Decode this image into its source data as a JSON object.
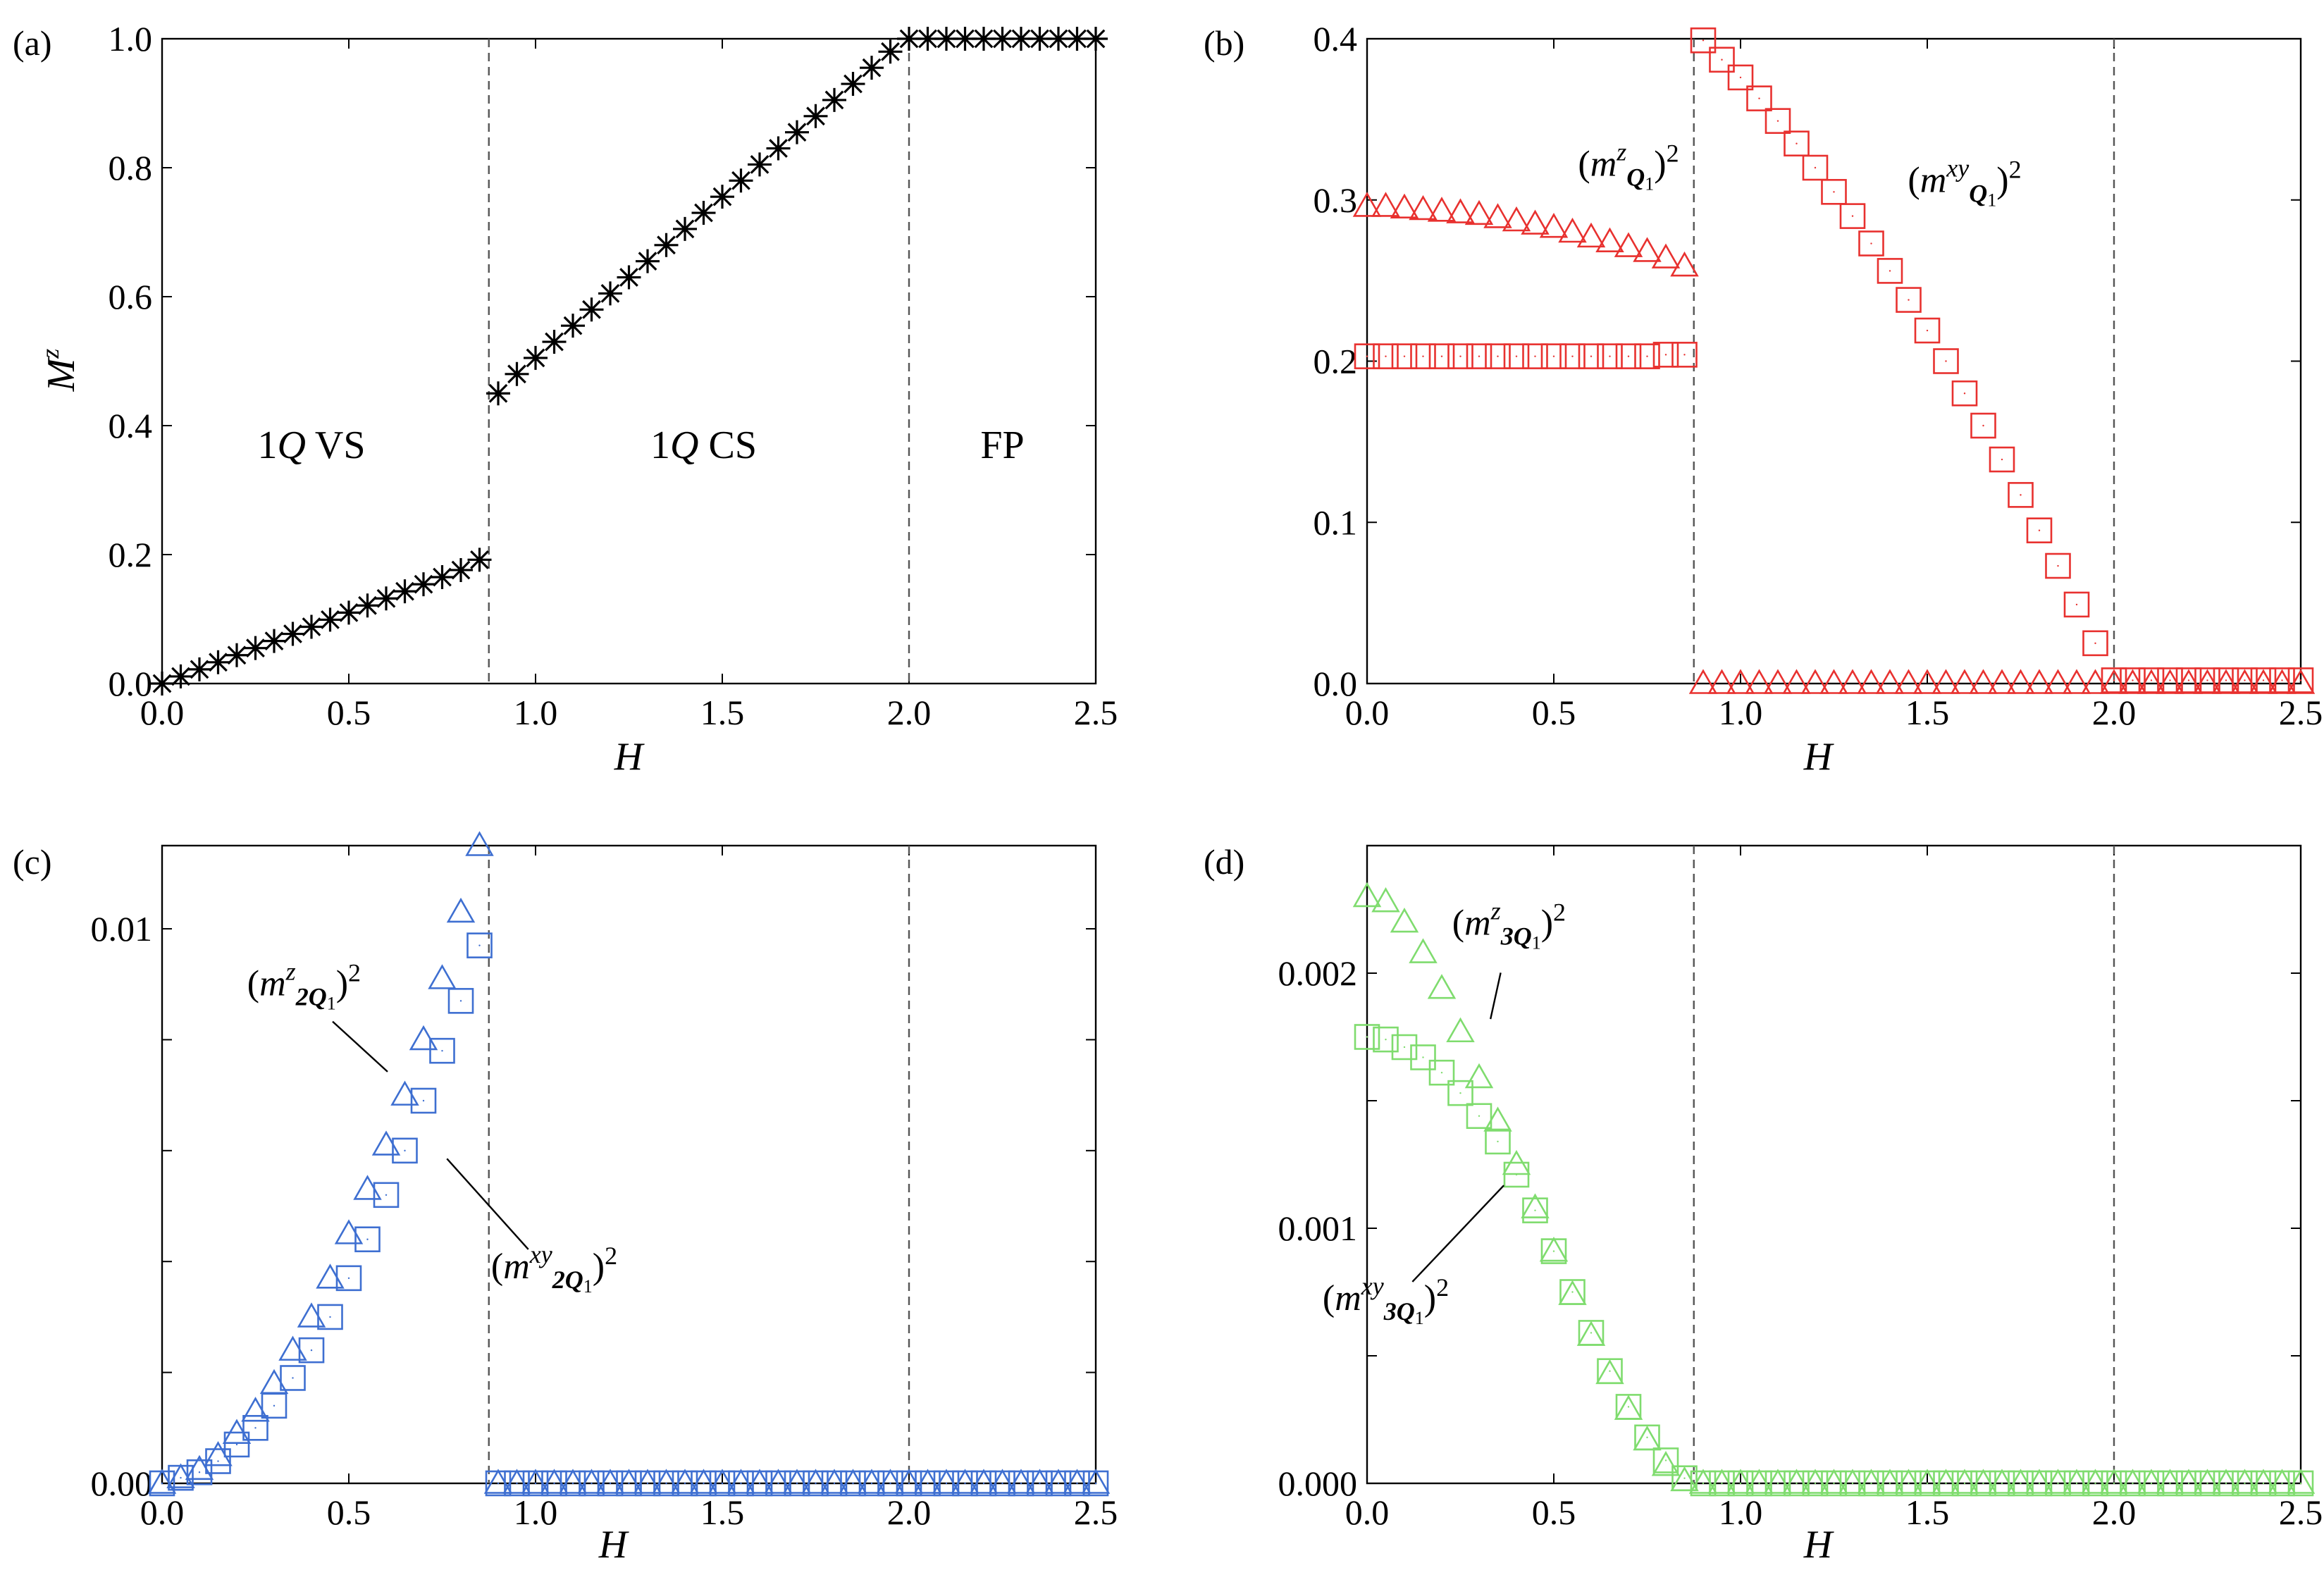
{
  "figure_title": "",
  "chart_data": [
    {
      "id": "a",
      "type": "scatter",
      "panel_label": "(a)",
      "title": "",
      "xlabel": "H",
      "ylabel": "M",
      "ylabel_sup": "z",
      "xlim": [
        0,
        2.5
      ],
      "ylim": [
        0,
        1.0
      ],
      "xticks": [
        0.0,
        0.5,
        1.0,
        1.5,
        2.0,
        2.5
      ],
      "xtick_labels": [
        "0.0",
        "0.5",
        "1.0",
        "1.5",
        "2.0",
        "2.5"
      ],
      "yticks": [
        0.0,
        0.2,
        0.4,
        0.6,
        0.8,
        1.0
      ],
      "ytick_labels": [
        "0.0",
        "0.2",
        "0.4",
        "0.6",
        "0.8",
        "1.0"
      ],
      "vlines": [
        0.875,
        2.0
      ],
      "regions": [
        {
          "label": "1Q VS",
          "x": 0.4,
          "y": 0.35
        },
        {
          "label": "1Q CS",
          "x": 1.45,
          "y": 0.35
        },
        {
          "label": "FP",
          "x": 2.25,
          "y": 0.35
        }
      ],
      "series": [
        {
          "name": "Mz",
          "marker": "star",
          "color": "#000000",
          "x": [
            0.0,
            0.05,
            0.1,
            0.15,
            0.2,
            0.25,
            0.3,
            0.35,
            0.4,
            0.45,
            0.5,
            0.55,
            0.6,
            0.65,
            0.7,
            0.75,
            0.8,
            0.85,
            0.9,
            0.95,
            1.0,
            1.05,
            1.1,
            1.15,
            1.2,
            1.25,
            1.3,
            1.35,
            1.4,
            1.45,
            1.5,
            1.55,
            1.6,
            1.65,
            1.7,
            1.75,
            1.8,
            1.85,
            1.9,
            1.95,
            2.0,
            2.05,
            2.1,
            2.15,
            2.2,
            2.25,
            2.3,
            2.35,
            2.4,
            2.45,
            2.5
          ],
          "y": [
            0.0,
            0.011,
            0.022,
            0.033,
            0.044,
            0.055,
            0.066,
            0.077,
            0.088,
            0.099,
            0.11,
            0.121,
            0.132,
            0.143,
            0.154,
            0.165,
            0.176,
            0.192,
            0.45,
            0.48,
            0.505,
            0.53,
            0.555,
            0.58,
            0.605,
            0.63,
            0.655,
            0.68,
            0.705,
            0.73,
            0.755,
            0.78,
            0.805,
            0.83,
            0.855,
            0.88,
            0.905,
            0.93,
            0.955,
            0.98,
            1.0,
            1.0,
            1.0,
            1.0,
            1.0,
            1.0,
            1.0,
            1.0,
            1.0,
            1.0,
            1.0
          ]
        }
      ]
    },
    {
      "id": "b",
      "type": "scatter",
      "panel_label": "(b)",
      "title": "",
      "xlabel": "H",
      "ylabel": "",
      "xlim": [
        0,
        2.5
      ],
      "ylim": [
        0,
        0.4
      ],
      "xticks": [
        0.0,
        0.5,
        1.0,
        1.5,
        2.0,
        2.5
      ],
      "xtick_labels": [
        "0.0",
        "0.5",
        "1.0",
        "1.5",
        "2.0",
        "2.5"
      ],
      "yticks": [
        0.0,
        0.1,
        0.2,
        0.3,
        0.4
      ],
      "ytick_labels": [
        "0.0",
        "0.1",
        "0.2",
        "0.3",
        "0.4"
      ],
      "vlines": [
        0.875,
        2.0
      ],
      "series": [
        {
          "name": "(m^z_Q1)^2",
          "marker": "triangle",
          "color": "#e8312f",
          "x": [
            0.0,
            0.05,
            0.1,
            0.15,
            0.2,
            0.25,
            0.3,
            0.35,
            0.4,
            0.45,
            0.5,
            0.55,
            0.6,
            0.65,
            0.7,
            0.75,
            0.8,
            0.85,
            0.9,
            0.95,
            1.0,
            1.05,
            1.1,
            1.15,
            1.2,
            1.25,
            1.3,
            1.35,
            1.4,
            1.45,
            1.5,
            1.55,
            1.6,
            1.65,
            1.7,
            1.75,
            1.8,
            1.85,
            1.9,
            1.95,
            2.0,
            2.05,
            2.1,
            2.15,
            2.2,
            2.25,
            2.3,
            2.35,
            2.4,
            2.45,
            2.5
          ],
          "y": [
            0.296,
            0.296,
            0.295,
            0.294,
            0.293,
            0.292,
            0.291,
            0.289,
            0.287,
            0.285,
            0.283,
            0.28,
            0.277,
            0.274,
            0.271,
            0.268,
            0.264,
            0.259,
            0.0,
            0.0,
            0.0,
            0.0,
            0.0,
            0.0,
            0.0,
            0.0,
            0.0,
            0.0,
            0.0,
            0.0,
            0.0,
            0.0,
            0.0,
            0.0,
            0.0,
            0.0,
            0.0,
            0.0,
            0.0,
            0.0,
            0.0,
            0.0,
            0.0,
            0.0,
            0.0,
            0.0,
            0.0,
            0.0,
            0.0,
            0.0,
            0.0
          ]
        },
        {
          "name": "(m^xy_Q1)^2",
          "marker": "square",
          "color": "#e8312f",
          "x": [
            0.0,
            0.05,
            0.1,
            0.15,
            0.2,
            0.25,
            0.3,
            0.35,
            0.4,
            0.45,
            0.5,
            0.55,
            0.6,
            0.65,
            0.7,
            0.75,
            0.8,
            0.85,
            0.9,
            0.95,
            1.0,
            1.05,
            1.1,
            1.15,
            1.2,
            1.25,
            1.3,
            1.35,
            1.4,
            1.45,
            1.5,
            1.55,
            1.6,
            1.65,
            1.7,
            1.75,
            1.8,
            1.85,
            1.9,
            1.95,
            2.0,
            2.05,
            2.1,
            2.15,
            2.2,
            2.25,
            2.3,
            2.35,
            2.4,
            2.45,
            2.5
          ],
          "y": [
            0.203,
            0.203,
            0.203,
            0.203,
            0.203,
            0.203,
            0.203,
            0.203,
            0.203,
            0.203,
            0.203,
            0.203,
            0.203,
            0.203,
            0.203,
            0.203,
            0.204,
            0.204,
            0.399,
            0.387,
            0.376,
            0.363,
            0.349,
            0.335,
            0.32,
            0.305,
            0.29,
            0.273,
            0.256,
            0.238,
            0.219,
            0.2,
            0.18,
            0.16,
            0.139,
            0.117,
            0.095,
            0.073,
            0.049,
            0.025,
            0.002,
            0.002,
            0.002,
            0.002,
            0.002,
            0.002,
            0.002,
            0.002,
            0.002,
            0.002,
            0.002
          ]
        }
      ],
      "annotations": [
        {
          "base": "m",
          "sup": "z",
          "sub": "Q",
          "subsub": "1",
          "pow": "2",
          "x": 0.7,
          "y": 0.315
        },
        {
          "base": "m",
          "sup": "xy",
          "sub": "Q",
          "subsub": "1",
          "pow": "2",
          "x": 1.6,
          "y": 0.305
        }
      ]
    },
    {
      "id": "c",
      "type": "scatter",
      "panel_label": "(c)",
      "title": "",
      "xlabel": "H",
      "ylabel": "",
      "xlim": [
        0,
        2.5
      ],
      "ylim": [
        0,
        0.0115
      ],
      "xticks": [
        0.0,
        0.5,
        1.0,
        1.5,
        2.0,
        2.5
      ],
      "xtick_labels": [
        "0.0",
        "0.5",
        "1.0",
        "1.5",
        "2.0",
        "2.5"
      ],
      "yticks": [
        0.0,
        0.002,
        0.004,
        0.006,
        0.008,
        0.01
      ],
      "ytick_labels": [
        "0.00",
        "",
        "",
        "",
        "",
        "0.01"
      ],
      "vlines": [
        0.875,
        2.0
      ],
      "series": [
        {
          "name": "(m^z_2Q1)^2",
          "marker": "triangle",
          "color": "#3e6fd1",
          "x": [
            0.0,
            0.05,
            0.1,
            0.15,
            0.2,
            0.25,
            0.3,
            0.35,
            0.4,
            0.45,
            0.5,
            0.55,
            0.6,
            0.65,
            0.7,
            0.75,
            0.8,
            0.85,
            0.9,
            0.95,
            1.0,
            1.05,
            1.1,
            1.15,
            1.2,
            1.25,
            1.3,
            1.35,
            1.4,
            1.45,
            1.5,
            1.55,
            1.6,
            1.65,
            1.7,
            1.75,
            1.8,
            1.85,
            1.9,
            1.95,
            2.0,
            2.05,
            2.1,
            2.15,
            2.2,
            2.25,
            2.3,
            2.35,
            2.4,
            2.45,
            2.5
          ],
          "y": [
            0.0,
            0.0001,
            0.00025,
            0.0005,
            0.0009,
            0.0013,
            0.0018,
            0.0024,
            0.003,
            0.0037,
            0.0045,
            0.0053,
            0.0061,
            0.007,
            0.008,
            0.0091,
            0.0103,
            0.0115,
            0.0,
            0.0,
            0.0,
            0.0,
            0.0,
            0.0,
            0.0,
            0.0,
            0.0,
            0.0,
            0.0,
            0.0,
            0.0,
            0.0,
            0.0,
            0.0,
            0.0,
            0.0,
            0.0,
            0.0,
            0.0,
            0.0,
            0.0,
            0.0,
            0.0,
            0.0,
            0.0,
            0.0,
            0.0,
            0.0,
            0.0,
            0.0,
            0.0
          ]
        },
        {
          "name": "(m^xy_2Q1)^2",
          "marker": "square",
          "color": "#3e6fd1",
          "x": [
            0.0,
            0.05,
            0.1,
            0.15,
            0.2,
            0.25,
            0.3,
            0.35,
            0.4,
            0.45,
            0.5,
            0.55,
            0.6,
            0.65,
            0.7,
            0.75,
            0.8,
            0.85,
            0.9,
            0.95,
            1.0,
            1.05,
            1.1,
            1.15,
            1.2,
            1.25,
            1.3,
            1.35,
            1.4,
            1.45,
            1.5,
            1.55,
            1.6,
            1.65,
            1.7,
            1.75,
            1.8,
            1.85,
            1.9,
            1.95,
            2.0,
            2.05,
            2.1,
            2.15,
            2.2,
            2.25,
            2.3,
            2.35,
            2.4,
            2.45,
            2.5
          ],
          "y": [
            0.0,
            0.0001,
            0.0002,
            0.0004,
            0.0007,
            0.001,
            0.0014,
            0.0019,
            0.0024,
            0.003,
            0.0037,
            0.0044,
            0.0052,
            0.006,
            0.0069,
            0.0078,
            0.0087,
            0.0097,
            0.0,
            0.0,
            0.0,
            0.0,
            0.0,
            0.0,
            0.0,
            0.0,
            0.0,
            0.0,
            0.0,
            0.0,
            0.0,
            0.0,
            0.0,
            0.0,
            0.0,
            0.0,
            0.0,
            0.0,
            0.0,
            0.0,
            0.0,
            0.0,
            0.0,
            0.0,
            0.0,
            0.0,
            0.0,
            0.0,
            0.0,
            0.0,
            0.0
          ]
        }
      ],
      "annotations": [
        {
          "base": "m",
          "sup": "z",
          "sub": "2Q",
          "subsub": "1",
          "pow": "2",
          "x": 0.38,
          "y": 0.0088,
          "tx": 0.64,
          "ty": 0.0072
        },
        {
          "base": "m",
          "sup": "xy",
          "sub": "2Q",
          "subsub": "1",
          "pow": "2",
          "x": 1.05,
          "y": 0.0037,
          "tx": 0.73,
          "ty": 0.0061
        }
      ]
    },
    {
      "id": "d",
      "type": "scatter",
      "panel_label": "(d)",
      "title": "",
      "xlabel": "H",
      "ylabel": "",
      "xlim": [
        0,
        2.5
      ],
      "ylim": [
        0,
        0.0025
      ],
      "xticks": [
        0.0,
        0.5,
        1.0,
        1.5,
        2.0,
        2.5
      ],
      "xtick_labels": [
        "0.0",
        "0.5",
        "1.0",
        "1.5",
        "2.0",
        "2.5"
      ],
      "yticks": [
        0.0,
        0.0005,
        0.001,
        0.0015,
        0.002
      ],
      "ytick_labels": [
        "0.000",
        "",
        "0.001",
        "",
        "0.002"
      ],
      "vlines": [
        0.875,
        2.0
      ],
      "series": [
        {
          "name": "(m^z_3Q1)^2",
          "marker": "triangle",
          "color": "#7fdc6e",
          "x": [
            0.0,
            0.05,
            0.1,
            0.15,
            0.2,
            0.25,
            0.3,
            0.35,
            0.4,
            0.45,
            0.5,
            0.55,
            0.6,
            0.65,
            0.7,
            0.75,
            0.8,
            0.85,
            0.9,
            0.95,
            1.0,
            1.05,
            1.1,
            1.15,
            1.2,
            1.25,
            1.3,
            1.35,
            1.4,
            1.45,
            1.5,
            1.55,
            1.6,
            1.65,
            1.7,
            1.75,
            1.8,
            1.85,
            1.9,
            1.95,
            2.0,
            2.05,
            2.1,
            2.15,
            2.2,
            2.25,
            2.3,
            2.35,
            2.4,
            2.45,
            2.5
          ],
          "y": [
            0.0023,
            0.00228,
            0.0022,
            0.00208,
            0.00194,
            0.00177,
            0.00159,
            0.00142,
            0.00125,
            0.00108,
            0.00091,
            0.00074,
            0.00058,
            0.00043,
            0.00029,
            0.00017,
            7e-05,
            1e-05,
            0.0,
            0.0,
            0.0,
            0.0,
            0.0,
            0.0,
            0.0,
            0.0,
            0.0,
            0.0,
            0.0,
            0.0,
            0.0,
            0.0,
            0.0,
            0.0,
            0.0,
            0.0,
            0.0,
            0.0,
            0.0,
            0.0,
            0.0,
            0.0,
            0.0,
            0.0,
            0.0,
            0.0,
            0.0,
            0.0,
            0.0,
            0.0,
            0.0
          ]
        },
        {
          "name": "(m^xy_3Q1)^2",
          "marker": "square",
          "color": "#7fdc6e",
          "x": [
            0.0,
            0.05,
            0.1,
            0.15,
            0.2,
            0.25,
            0.3,
            0.35,
            0.4,
            0.45,
            0.5,
            0.55,
            0.6,
            0.65,
            0.7,
            0.75,
            0.8,
            0.85,
            0.9,
            0.95,
            1.0,
            1.05,
            1.1,
            1.15,
            1.2,
            1.25,
            1.3,
            1.35,
            1.4,
            1.45,
            1.5,
            1.55,
            1.6,
            1.65,
            1.7,
            1.75,
            1.8,
            1.85,
            1.9,
            1.95,
            2.0,
            2.05,
            2.1,
            2.15,
            2.2,
            2.25,
            2.3,
            2.35,
            2.4,
            2.45,
            2.5
          ],
          "y": [
            0.00175,
            0.00174,
            0.00171,
            0.00167,
            0.00161,
            0.00153,
            0.00144,
            0.00134,
            0.00121,
            0.00107,
            0.00091,
            0.00075,
            0.00059,
            0.00044,
            0.0003,
            0.00018,
            9e-05,
            2e-05,
            0.0,
            0.0,
            0.0,
            0.0,
            0.0,
            0.0,
            0.0,
            0.0,
            0.0,
            0.0,
            0.0,
            0.0,
            0.0,
            0.0,
            0.0,
            0.0,
            0.0,
            0.0,
            0.0,
            0.0,
            0.0,
            0.0,
            0.0,
            0.0,
            0.0,
            0.0,
            0.0,
            0.0,
            0.0,
            0.0,
            0.0,
            0.0,
            0.0
          ]
        }
      ],
      "annotations": [
        {
          "base": "m",
          "sup": "z",
          "sub": "3Q",
          "subsub": "1",
          "pow": "2",
          "x": 0.38,
          "y": 0.00215,
          "tx": 0.32,
          "ty": 0.00175
        },
        {
          "base": "m",
          "sup": "xy",
          "sub": "3Q",
          "subsub": "1",
          "pow": "2",
          "x": 0.05,
          "y": 0.00068,
          "tx": 0.4,
          "ty": 0.00122
        }
      ]
    }
  ]
}
